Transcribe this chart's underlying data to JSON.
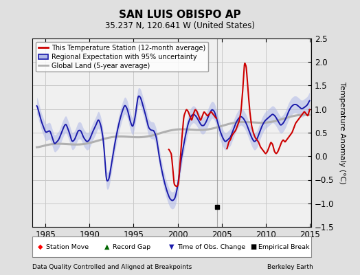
{
  "title": "SAN LUIS OBISPO AP",
  "subtitle": "35.237 N, 120.641 W (United States)",
  "ylabel": "Temperature Anomaly (°C)",
  "xlabel_left": "Data Quality Controlled and Aligned at Breakpoints",
  "xlabel_right": "Berkeley Earth",
  "ylim": [
    -1.5,
    2.5
  ],
  "xlim": [
    1983.5,
    2015.2
  ],
  "yticks": [
    -1.5,
    -1.0,
    -0.5,
    0.0,
    0.5,
    1.0,
    1.5,
    2.0,
    2.5
  ],
  "xticks": [
    1985,
    1990,
    1995,
    2000,
    2005,
    2010,
    2015
  ],
  "red_color": "#cc0000",
  "blue_color": "#1a1aaa",
  "blue_fill_color": "#b0b8e8",
  "gray_color": "#b0b0b0",
  "background_color": "#e0e0e0",
  "plot_bg_color": "#f0f0f0",
  "grid_color": "#c8c8c8",
  "vline_x": 2004.5,
  "empirical_break_x": 2004.5,
  "empirical_break_y": -1.08
}
